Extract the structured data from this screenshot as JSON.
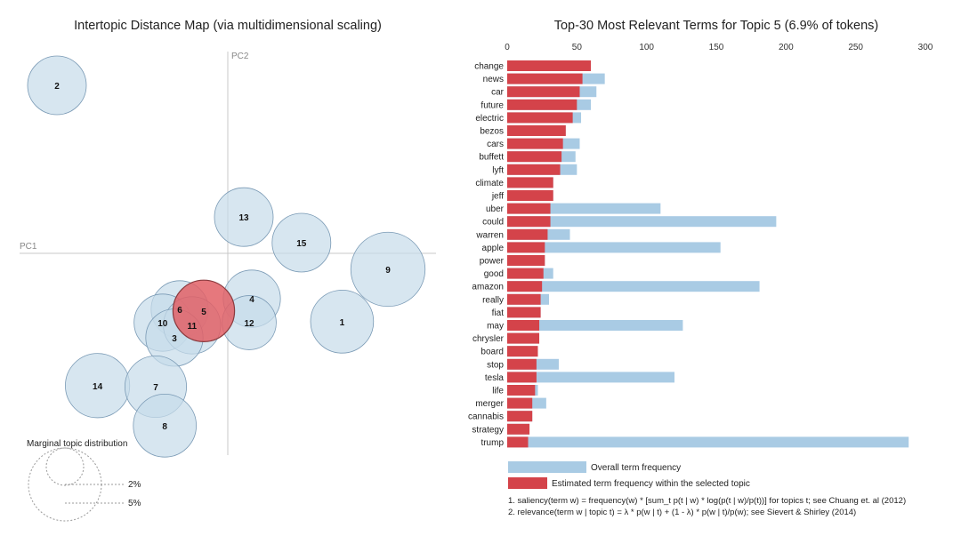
{
  "colors": {
    "overall": "#a9cbe4",
    "estimated": "#d4434a",
    "bubble": "#c6dbea",
    "bubble_stroke": "#7a9ab5",
    "selected": "#e26066",
    "axis_line": "#c8c8c8"
  },
  "map": {
    "title": "Intertopic Distance Map (via multidimensional scaling)",
    "pc1_label": "PC1",
    "pc2_label": "PC2",
    "selected_topic": 5,
    "marginal_title": "Marginal topic distribution",
    "marginal_labels": [
      "2%",
      "5%"
    ]
  },
  "legend": {
    "overall": "Overall term frequency",
    "estimated": "Estimated term frequency within the selected topic"
  },
  "footnotes": [
    "1. saliency(term w) = frequency(w) * [sum_t p(t | w) * log(p(t | w)/p(t))] for topics t; see Chuang et. al (2012)",
    "2. relevance(term w | topic t) = λ * p(w | t) + (1 - λ) * p(w | t)/p(w); see Sievert & Shirley (2014)"
  ],
  "chart_data": [
    {
      "type": "scatter",
      "title": "Intertopic Distance Map (via multidimensional scaling)",
      "xlabel": "PC1",
      "ylabel": "PC2",
      "grid": false,
      "points": [
        {
          "topic": 2,
          "x": -0.32,
          "y": 0.315,
          "size": 1.0
        },
        {
          "topic": 13,
          "x": 0.03,
          "y": 0.068,
          "size": 1.0
        },
        {
          "topic": 15,
          "x": 0.138,
          "y": 0.02,
          "size": 1.0
        },
        {
          "topic": 9,
          "x": 0.3,
          "y": -0.03,
          "size": 1.6
        },
        {
          "topic": 4,
          "x": 0.045,
          "y": -0.085,
          "size": 0.95
        },
        {
          "topic": 6,
          "x": -0.09,
          "y": -0.105,
          "size": 0.95
        },
        {
          "topic": 5,
          "x": -0.045,
          "y": -0.108,
          "size": 1.1
        },
        {
          "topic": 10,
          "x": -0.122,
          "y": -0.13,
          "size": 0.95
        },
        {
          "topic": 11,
          "x": -0.067,
          "y": -0.135,
          "size": 0.95
        },
        {
          "topic": 12,
          "x": 0.04,
          "y": -0.13,
          "size": 0.85
        },
        {
          "topic": 3,
          "x": -0.1,
          "y": -0.158,
          "size": 0.95
        },
        {
          "topic": 1,
          "x": 0.214,
          "y": -0.128,
          "size": 1.15
        },
        {
          "topic": 14,
          "x": -0.244,
          "y": -0.248,
          "size": 1.2
        },
        {
          "topic": 7,
          "x": -0.135,
          "y": -0.25,
          "size": 1.1
        },
        {
          "topic": 8,
          "x": -0.118,
          "y": -0.323,
          "size": 1.15
        }
      ]
    },
    {
      "type": "bar",
      "title": "Top-30 Most Relevant Terms for Topic 5 (6.9% of tokens)",
      "orientation": "horizontal",
      "xlim": [
        0,
        300
      ],
      "xticks": [
        0,
        50,
        100,
        150,
        200,
        250,
        300
      ],
      "categories": [
        "change",
        "news",
        "car",
        "future",
        "electric",
        "bezos",
        "cars",
        "buffett",
        "lyft",
        "climate",
        "jeff",
        "uber",
        "could",
        "warren",
        "apple",
        "power",
        "good",
        "amazon",
        "really",
        "fiat",
        "may",
        "chrysler",
        "board",
        "stop",
        "tesla",
        "life",
        "merger",
        "cannabis",
        "strategy",
        "trump"
      ],
      "series": [
        {
          "name": "Overall term frequency",
          "values": [
            60,
            70,
            64,
            60,
            53,
            42,
            52,
            49,
            50,
            33,
            33,
            110,
            193,
            45,
            153,
            27,
            33,
            181,
            30,
            24,
            126,
            23,
            22,
            37,
            120,
            22,
            28,
            18,
            16,
            288
          ]
        },
        {
          "name": "Estimated term frequency within the selected topic",
          "values": [
            60,
            54,
            52,
            50,
            47,
            42,
            40,
            39,
            38,
            33,
            33,
            31,
            31,
            29,
            27,
            27,
            26,
            25,
            24,
            24,
            23,
            23,
            22,
            21,
            21,
            20,
            18,
            18,
            16,
            15
          ]
        }
      ]
    }
  ]
}
